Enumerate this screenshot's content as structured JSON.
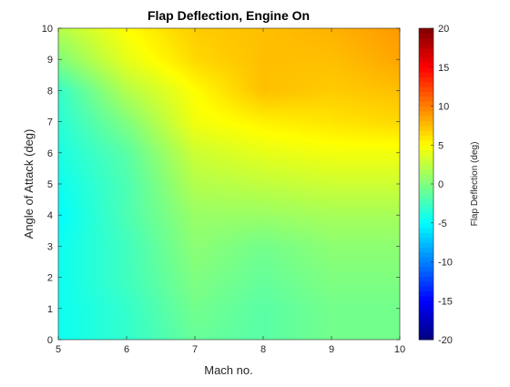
{
  "chart_data": {
    "type": "heatmap",
    "title": "Flap Deflection, Engine On",
    "xlabel": "Mach no.",
    "ylabel": "Angle of Attack (deg)",
    "xlim": [
      5,
      10
    ],
    "ylim": [
      0,
      10
    ],
    "x_ticks": [
      5,
      6,
      7,
      8,
      9,
      10
    ],
    "y_ticks": [
      0,
      1,
      2,
      3,
      4,
      5,
      6,
      7,
      8,
      9,
      10
    ],
    "x": [
      5,
      6,
      7,
      8,
      9,
      10
    ],
    "y": [
      0,
      1,
      2,
      3,
      4,
      5,
      6,
      7,
      8,
      9,
      10
    ],
    "z": [
      [
        -4.5,
        -3.0,
        -1.0,
        -1.5,
        -0.5,
        -0.5
      ],
      [
        -4.5,
        -3.0,
        -0.5,
        -1.5,
        -0.5,
        -0.5
      ],
      [
        -4.5,
        -2.5,
        0.0,
        -1.0,
        0.0,
        0.0
      ],
      [
        -4.5,
        -2.5,
        0.5,
        -0.5,
        0.5,
        0.5
      ],
      [
        -5.0,
        -2.0,
        1.0,
        1.0,
        1.5,
        1.5
      ],
      [
        -4.5,
        -2.0,
        2.0,
        2.5,
        3.0,
        3.0
      ],
      [
        -4.0,
        -1.5,
        3.0,
        4.0,
        4.5,
        4.5
      ],
      [
        -3.5,
        0.0,
        4.5,
        5.5,
        6.0,
        6.5
      ],
      [
        -3.0,
        2.0,
        5.0,
        7.5,
        7.0,
        7.5
      ],
      [
        0.0,
        4.0,
        6.5,
        7.5,
        7.5,
        8.5
      ],
      [
        2.0,
        5.0,
        7.0,
        7.5,
        8.0,
        9.0
      ]
    ],
    "colorbar": {
      "label": "Flap Deflection (deg)",
      "limits": [
        -20,
        20
      ],
      "ticks": [
        -20,
        -15,
        -10,
        -5,
        0,
        5,
        10,
        15,
        20
      ],
      "colormap": "jet"
    },
    "grid": false
  }
}
